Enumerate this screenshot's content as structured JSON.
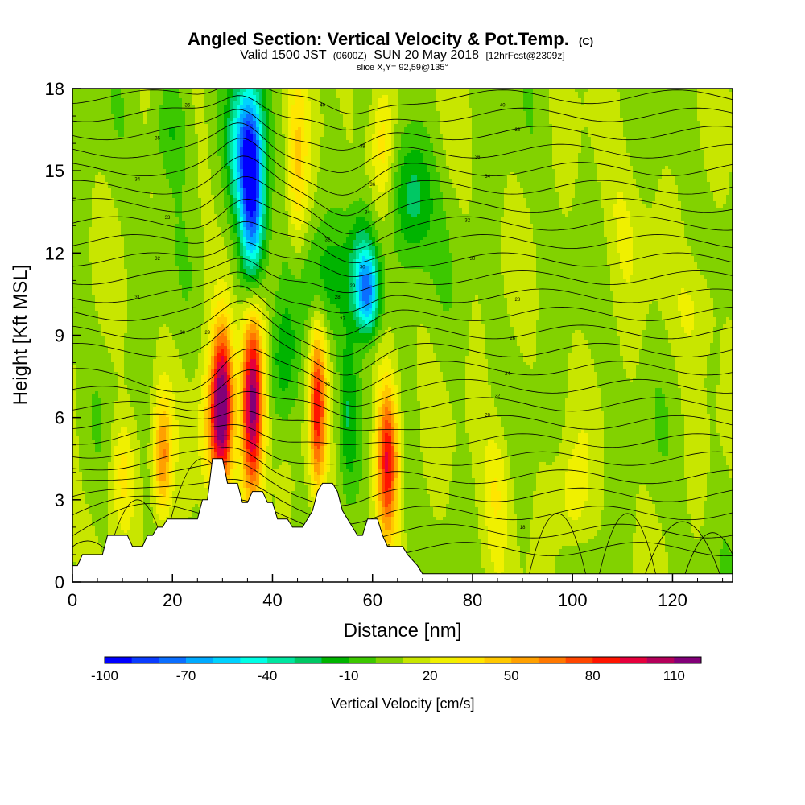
{
  "chart_data": {
    "type": "heatmap",
    "title": "Angled Section: Vertical Velocity & Pot.Temp.",
    "title_suffix": "(C)",
    "subtitle_parts": [
      "Valid 1500 JST",
      "(0600Z)",
      "SUN 20 May 2018",
      "[12hrFcst@2309z]"
    ],
    "subtitle2": "slice X,Y= 92,59@135°",
    "xlabel": "Distance [nm]",
    "ylabel": "Height [Kft MSL]",
    "xlim": [
      0,
      132
    ],
    "ylim": [
      0,
      18
    ],
    "xticks": [
      0,
      20,
      40,
      60,
      80,
      100,
      120
    ],
    "yticks": [
      0,
      3,
      6,
      9,
      12,
      15,
      18
    ],
    "colorbar": {
      "label": "Vertical Velocity [cm/s]",
      "tick_labels": [
        "-100",
        "-70",
        "-40",
        "-10",
        "20",
        "50",
        "80",
        "110"
      ],
      "tick_values": [
        -100,
        -70,
        -40,
        -10,
        20,
        50,
        80,
        110
      ],
      "bins": [
        -100,
        -90,
        -80,
        -70,
        -60,
        -50,
        -40,
        -30,
        -20,
        -10,
        0,
        10,
        20,
        30,
        40,
        50,
        60,
        70,
        80,
        90,
        100,
        110,
        120
      ],
      "colors": [
        "#0000ff",
        "#0a3cff",
        "#0a6eff",
        "#00aaff",
        "#00d2ff",
        "#00ffe6",
        "#00e6a0",
        "#00c864",
        "#00b400",
        "#3cc800",
        "#82d200",
        "#c8e600",
        "#f0f000",
        "#ffe600",
        "#ffc800",
        "#ffa000",
        "#ff7800",
        "#ff4600",
        "#ff1400",
        "#e6003c",
        "#b4005a",
        "#820078"
      ]
    },
    "terrain": [
      [
        0,
        0.6
      ],
      [
        1,
        0.6
      ],
      [
        2,
        1
      ],
      [
        6,
        1
      ],
      [
        7,
        1.7
      ],
      [
        11,
        1.7
      ],
      [
        12,
        1.3
      ],
      [
        14,
        1.3
      ],
      [
        15,
        1.7
      ],
      [
        16,
        1.7
      ],
      [
        17,
        2
      ],
      [
        18,
        2
      ],
      [
        19,
        2.3
      ],
      [
        25,
        2.3
      ],
      [
        26,
        3
      ],
      [
        27,
        3
      ],
      [
        28,
        4.5
      ],
      [
        30,
        4.5
      ],
      [
        31,
        3.6
      ],
      [
        33,
        3.6
      ],
      [
        34,
        2.9
      ],
      [
        35,
        2.9
      ],
      [
        36,
        3.3
      ],
      [
        38,
        3.3
      ],
      [
        39,
        2.9
      ],
      [
        40,
        2.9
      ],
      [
        41,
        2.3
      ],
      [
        43,
        2.3
      ],
      [
        44,
        2
      ],
      [
        46,
        2
      ],
      [
        47,
        2.3
      ],
      [
        48,
        2.6
      ],
      [
        49,
        3.3
      ],
      [
        50,
        3.6
      ],
      [
        52,
        3.6
      ],
      [
        53,
        3.3
      ],
      [
        54,
        2.6
      ],
      [
        55,
        2.3
      ],
      [
        56,
        2
      ],
      [
        57,
        1.7
      ],
      [
        58,
        1.7
      ],
      [
        59,
        2.3
      ],
      [
        61,
        2.3
      ],
      [
        62,
        1.7
      ],
      [
        63,
        1.3
      ],
      [
        66,
        1.3
      ],
      [
        67,
        1
      ],
      [
        69,
        0.6
      ],
      [
        70,
        0.3
      ],
      [
        132,
        0.3
      ]
    ],
    "features": [
      {
        "x": 30,
        "y": 6.5,
        "sx": 2.2,
        "sy": 2.8,
        "amp": 105
      },
      {
        "x": 28,
        "y": 5.5,
        "sx": 3,
        "sy": 2.5,
        "amp": 30
      },
      {
        "x": 36,
        "y": 6.5,
        "sx": 2.2,
        "sy": 3.5,
        "amp": 118
      },
      {
        "x": 49,
        "y": 6.3,
        "sx": 1.6,
        "sy": 3,
        "amp": 75
      },
      {
        "x": 63,
        "y": 4.5,
        "sx": 2.2,
        "sy": 2.8,
        "amp": 85
      },
      {
        "x": 18,
        "y": 4.5,
        "sx": 1.8,
        "sy": 2.2,
        "amp": 50
      },
      {
        "x": 10,
        "y": 4,
        "sx": 2.5,
        "sy": 2,
        "amp": 25
      },
      {
        "x": 85,
        "y": 3.5,
        "sx": 3,
        "sy": 2.5,
        "amp": 22
      },
      {
        "x": 100,
        "y": 3,
        "sx": 3,
        "sy": 2,
        "amp": 20
      },
      {
        "x": 36,
        "y": 14,
        "sx": 2.5,
        "sy": 3.5,
        "amp": -100
      },
      {
        "x": 34,
        "y": 16,
        "sx": 3,
        "sy": 2.5,
        "amp": -50
      },
      {
        "x": 59,
        "y": 10.5,
        "sx": 2.5,
        "sy": 1.5,
        "amp": -75
      },
      {
        "x": 58,
        "y": 12,
        "sx": 3,
        "sy": 2,
        "amp": -35
      },
      {
        "x": 68,
        "y": 14,
        "sx": 4,
        "sy": 2.5,
        "amp": -35
      },
      {
        "x": 42,
        "y": 8,
        "sx": 3,
        "sy": 2.5,
        "amp": -25
      },
      {
        "x": 55,
        "y": 6,
        "sx": 2,
        "sy": 3,
        "amp": -25
      },
      {
        "x": 45,
        "y": 15,
        "sx": 2,
        "sy": 3.5,
        "amp": 30
      },
      {
        "x": 62,
        "y": 16,
        "sx": 2.5,
        "sy": 2.5,
        "amp": 35
      },
      {
        "x": 50,
        "y": 11,
        "sx": 5,
        "sy": 2,
        "amp": -20
      },
      {
        "x": 20,
        "y": 16.5,
        "sx": 4,
        "sy": 2,
        "amp": -20
      },
      {
        "x": 110,
        "y": 13,
        "sx": 5,
        "sy": 3,
        "amp": 10
      },
      {
        "x": 125,
        "y": 10,
        "sx": 4,
        "sy": 2,
        "amp": 15
      }
    ],
    "theta_contours": {
      "count": 26,
      "labels": [
        {
          "x": 23,
          "y": 17.4,
          "t": "36"
        },
        {
          "x": 17,
          "y": 16.2,
          "t": "35"
        },
        {
          "x": 13,
          "y": 14.7,
          "t": "34"
        },
        {
          "x": 19,
          "y": 13.3,
          "t": "33"
        },
        {
          "x": 17,
          "y": 11.8,
          "t": "32"
        },
        {
          "x": 13,
          "y": 10.4,
          "t": "31"
        },
        {
          "x": 22,
          "y": 9.1,
          "t": "30"
        },
        {
          "x": 27,
          "y": 9.1,
          "t": "29"
        },
        {
          "x": 50,
          "y": 17.4,
          "t": "40"
        },
        {
          "x": 58,
          "y": 15.9,
          "t": "38"
        },
        {
          "x": 60,
          "y": 14.5,
          "t": "36"
        },
        {
          "x": 59,
          "y": 13.5,
          "t": "34"
        },
        {
          "x": 51,
          "y": 12.5,
          "t": "32"
        },
        {
          "x": 58,
          "y": 11.5,
          "t": "30"
        },
        {
          "x": 56,
          "y": 10.8,
          "t": "29"
        },
        {
          "x": 53,
          "y": 10.4,
          "t": "28"
        },
        {
          "x": 54,
          "y": 9.6,
          "t": "27"
        },
        {
          "x": 51,
          "y": 7.2,
          "t": "26"
        },
        {
          "x": 86,
          "y": 17.4,
          "t": "40"
        },
        {
          "x": 89,
          "y": 16.5,
          "t": "38"
        },
        {
          "x": 81,
          "y": 15.5,
          "t": "36"
        },
        {
          "x": 83,
          "y": 14.8,
          "t": "34"
        },
        {
          "x": 79,
          "y": 13.2,
          "t": "32"
        },
        {
          "x": 80,
          "y": 11.8,
          "t": "30"
        },
        {
          "x": 89,
          "y": 10.3,
          "t": "28"
        },
        {
          "x": 88,
          "y": 8.9,
          "t": "26"
        },
        {
          "x": 87,
          "y": 7.6,
          "t": "24"
        },
        {
          "x": 85,
          "y": 6.8,
          "t": "22"
        },
        {
          "x": 83,
          "y": 6.1,
          "t": "20"
        },
        {
          "x": 90,
          "y": 2,
          "t": "18"
        },
        {
          "x": 63,
          "y": 1.3,
          "t": "18"
        }
      ]
    }
  }
}
